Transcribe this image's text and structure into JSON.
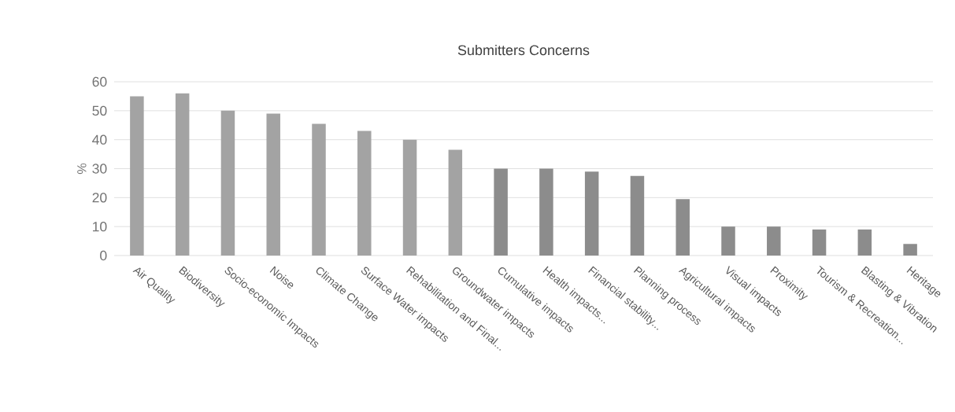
{
  "chart_data": {
    "type": "bar",
    "title": "Submitters Concerns",
    "ylabel": "%",
    "categories": [
      "Air Quality",
      "Biodiversity",
      "Socio-economic Impacts",
      "Noise",
      "Climate Change",
      "Surface Water impacts",
      "Rehabilitation and Final...",
      "Groundwater impacts",
      "Cumulative impacts",
      "Health impacts...",
      "Financial stability...",
      "Planning process",
      "Agricultural impacts",
      "Visual impacts",
      "Proximity",
      "Tourism & Recreation...",
      "Blasting & Vibration",
      "Heritage"
    ],
    "values": [
      55,
      56,
      50,
      49,
      45.5,
      43,
      40,
      36.5,
      30,
      30,
      29,
      27.5,
      19.5,
      10,
      10,
      9,
      9,
      4
    ],
    "colors": [
      "#a3a3a3",
      "#a3a3a3",
      "#a3a3a3",
      "#a3a3a3",
      "#a3a3a3",
      "#a3a3a3",
      "#a3a3a3",
      "#a3a3a3",
      "#8c8c8c",
      "#8c8c8c",
      "#8c8c8c",
      "#8c8c8c",
      "#8c8c8c",
      "#8c8c8c",
      "#8c8c8c",
      "#8c8c8c",
      "#8c8c8c",
      "#8c8c8c"
    ],
    "ylim": [
      0,
      60
    ],
    "yticks": [
      0,
      10,
      20,
      30,
      40,
      50,
      60
    ],
    "grid": "y"
  }
}
